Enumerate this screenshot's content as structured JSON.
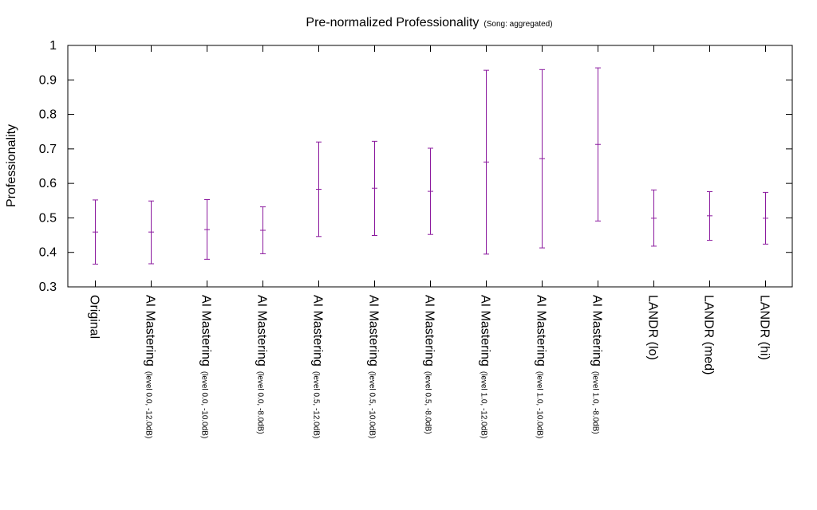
{
  "chart_data": {
    "type": "errorbar",
    "title": "Pre-normalized Professionality",
    "subtitle": "(Song: aggregated)",
    "ylabel": "Professionality",
    "xlabel": "",
    "ylim": [
      0.3,
      1.0
    ],
    "yticks": [
      "0.3",
      "0.4",
      "0.5",
      "0.6",
      "0.7",
      "0.8",
      "0.9",
      "1"
    ],
    "grid": false,
    "legend": "none",
    "series_color": "#8b1a9e",
    "categories": [
      {
        "main": "Original",
        "detail": ""
      },
      {
        "main": "AI Mastering",
        "detail": "(level 0.0, -12.0dB)"
      },
      {
        "main": "AI Mastering",
        "detail": "(level 0.0, -10.0dB)"
      },
      {
        "main": "AI Mastering",
        "detail": "(level 0.0, -8.0dB)"
      },
      {
        "main": "AI Mastering",
        "detail": "(level 0.5, -12.0dB)"
      },
      {
        "main": "AI Mastering",
        "detail": "(level 0.5, -10.0dB)"
      },
      {
        "main": "AI Mastering",
        "detail": "(level 0.5, -8.0dB)"
      },
      {
        "main": "AI Mastering",
        "detail": "(level 1.0, -12.0dB)"
      },
      {
        "main": "AI Mastering",
        "detail": "(level 1.0, -10.0dB)"
      },
      {
        "main": "AI Mastering",
        "detail": "(level 1.0, -8.0dB)"
      },
      {
        "main": "LANDR (lo)",
        "detail": ""
      },
      {
        "main": "LANDR (med)",
        "detail": ""
      },
      {
        "main": "LANDR (hi)",
        "detail": ""
      }
    ],
    "points": [
      {
        "mean": 0.459,
        "low": 0.366,
        "high": 0.552
      },
      {
        "mean": 0.459,
        "low": 0.367,
        "high": 0.549
      },
      {
        "mean": 0.466,
        "low": 0.38,
        "high": 0.553
      },
      {
        "mean": 0.464,
        "low": 0.396,
        "high": 0.532
      },
      {
        "mean": 0.583,
        "low": 0.446,
        "high": 0.72
      },
      {
        "mean": 0.586,
        "low": 0.449,
        "high": 0.722
      },
      {
        "mean": 0.577,
        "low": 0.452,
        "high": 0.702
      },
      {
        "mean": 0.662,
        "low": 0.395,
        "high": 0.928
      },
      {
        "mean": 0.672,
        "low": 0.413,
        "high": 0.93
      },
      {
        "mean": 0.713,
        "low": 0.491,
        "high": 0.935
      },
      {
        "mean": 0.499,
        "low": 0.418,
        "high": 0.581
      },
      {
        "mean": 0.506,
        "low": 0.435,
        "high": 0.576
      },
      {
        "mean": 0.499,
        "low": 0.424,
        "high": 0.574
      }
    ]
  }
}
